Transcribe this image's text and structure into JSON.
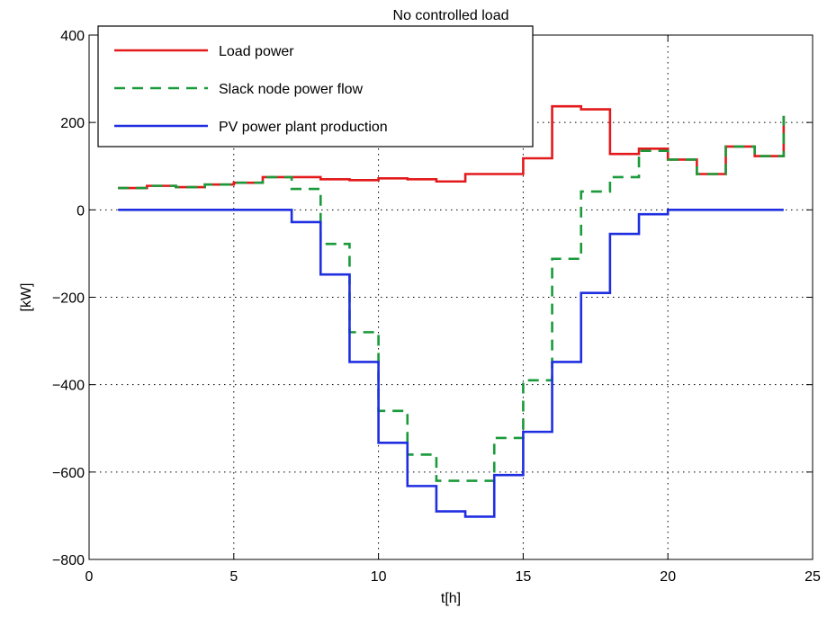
{
  "chart_data": {
    "type": "line",
    "title": "No controlled load",
    "xlabel": "t[h]",
    "ylabel": "[kW]",
    "xlim": [
      0,
      25
    ],
    "ylim": [
      -800,
      400
    ],
    "xticks": [
      0,
      5,
      10,
      15,
      20,
      25
    ],
    "yticks": [
      -800,
      -600,
      -400,
      -200,
      0,
      200,
      400
    ],
    "xtick_labels": [
      "0",
      "5",
      "10",
      "15",
      "20",
      "25"
    ],
    "ytick_labels": [
      "−800",
      "−600",
      "−400",
      "−200",
      "0",
      "200",
      "400"
    ],
    "grid": true,
    "legend_position": "top-left",
    "step": "post",
    "x": [
      1,
      2,
      3,
      4,
      5,
      6,
      7,
      8,
      9,
      10,
      11,
      12,
      13,
      14,
      15,
      16,
      17,
      18,
      19,
      20,
      21,
      22,
      23,
      24
    ],
    "series": [
      {
        "name": "Load power",
        "color": "#e31a1c",
        "style": "solid",
        "values": [
          50,
          55,
          52,
          58,
          62,
          75,
          75,
          70,
          68,
          72,
          70,
          65,
          82,
          82,
          118,
          237,
          230,
          128,
          140,
          115,
          82,
          145,
          123,
          215
        ]
      },
      {
        "name": "Slack node power flow",
        "color": "#1a9a3a",
        "style": "dashed",
        "values": [
          50,
          55,
          52,
          58,
          62,
          75,
          48,
          -78,
          -280,
          -460,
          -560,
          -620,
          -620,
          -522,
          -390,
          -112,
          42,
          75,
          135,
          115,
          82,
          145,
          123,
          215
        ]
      },
      {
        "name": "PV power plant production",
        "color": "#1f2fe0",
        "style": "solid",
        "values": [
          0,
          0,
          0,
          0,
          0,
          0,
          -28,
          -148,
          -348,
          -533,
          -632,
          -690,
          -702,
          -607,
          -508,
          -348,
          -190,
          -55,
          -10,
          0,
          0,
          0,
          0,
          0
        ]
      }
    ]
  }
}
